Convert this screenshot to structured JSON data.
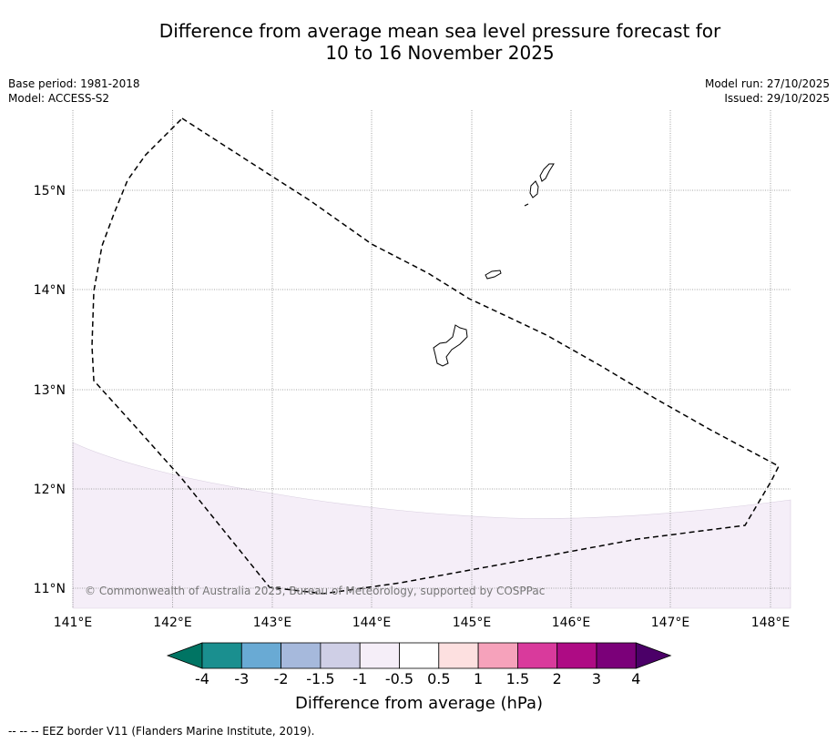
{
  "title_line1": "Difference from average mean sea level pressure forecast for",
  "title_line2": "10 to 16 November 2025",
  "base_period": "Base period: 1981-2018",
  "model": "Model: ACCESS-S2",
  "model_run": "Model run: 27/10/2025",
  "issued": "Issued: 29/10/2025",
  "copyright": "© Commonwealth of Australia 2025, Bureau of Meteorology, supported by COSPPac",
  "lat_labels": [
    "15°N",
    "14°N",
    "13°N",
    "12°N",
    "11°N"
  ],
  "lon_labels": [
    "141°E",
    "142°E",
    "143°E",
    "144°E",
    "145°E",
    "146°E",
    "147°E",
    "148°E"
  ],
  "colorbar": {
    "title": "Difference from average (hPa)",
    "labels": [
      "-4",
      "-3",
      "-2",
      "-1.5",
      "-1",
      "-0.5",
      "0.5",
      "1",
      "1.5",
      "2",
      "3",
      "4"
    ],
    "colors": [
      "#1a8f8f",
      "#69aad4",
      "#a6b9dc",
      "#cfcfe6",
      "#f5eef8",
      "#ffffff",
      "#fde0e0",
      "#f6a2bb",
      "#d93a9c",
      "#ae0b84",
      "#7b0079"
    ],
    "low_extend": "#007463",
    "high_extend": "#4b0068"
  },
  "legend_note": "--  --  -- EEZ border V11 (Flanders Marine Institute, 2019).",
  "colors": {
    "shading": "#f5eef8",
    "grid": "#888888"
  }
}
